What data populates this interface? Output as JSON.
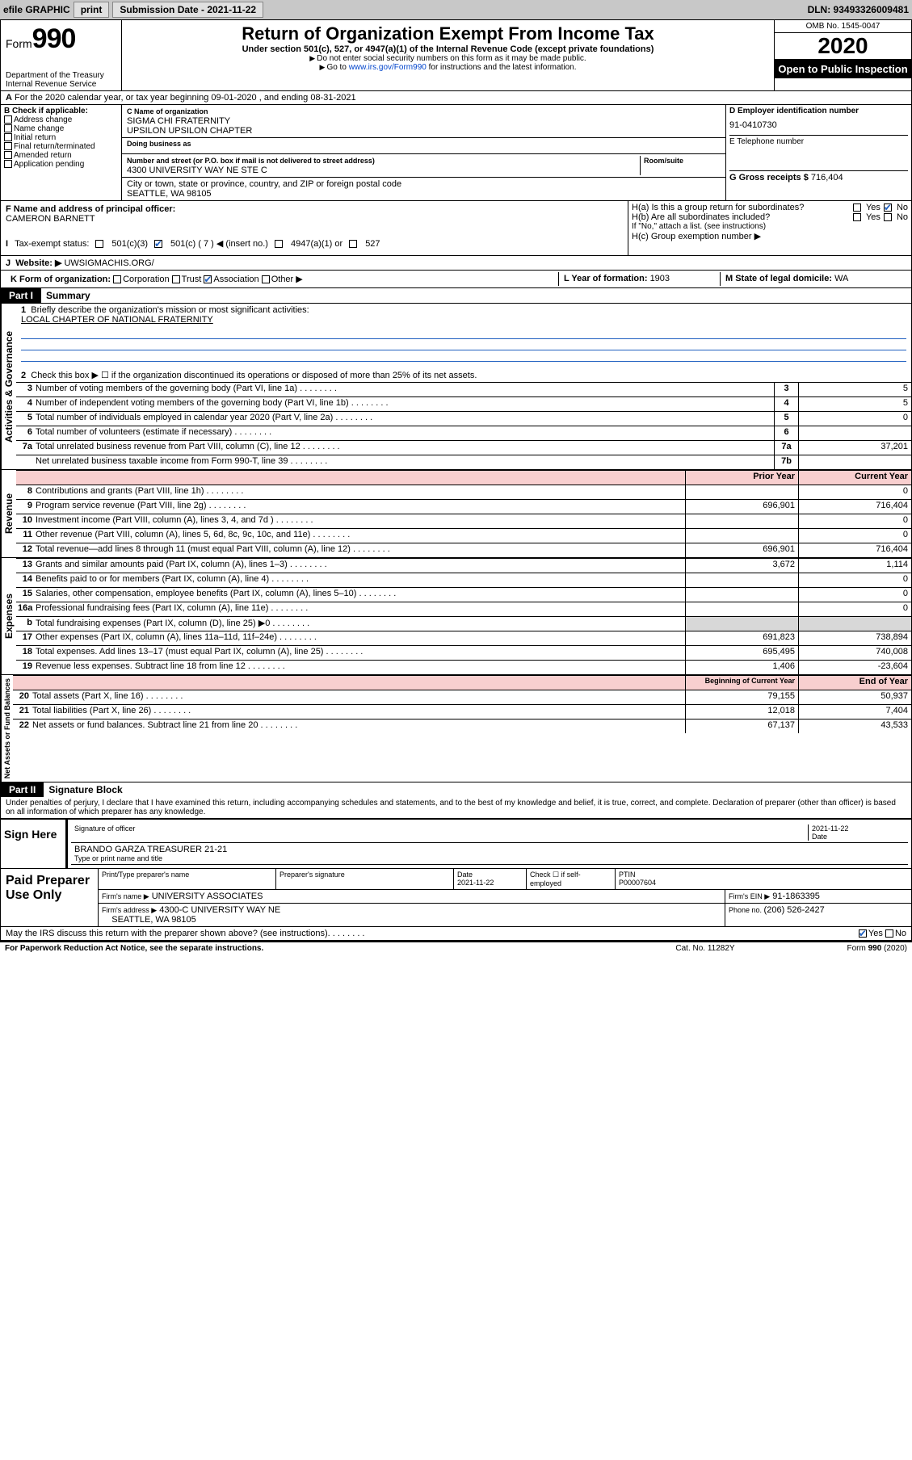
{
  "topbar": {
    "efile": "efile GRAPHIC",
    "print": "print",
    "sub_label": "Submission Date - 2021-11-22",
    "dln": "DLN: 93493326009481"
  },
  "header": {
    "form_label": "Form",
    "form_num": "990",
    "title": "Return of Organization Exempt From Income Tax",
    "subtitle": "Under section 501(c), 527, or 4947(a)(1) of the Internal Revenue Code (except private foundations)",
    "inst1": "Do not enter social security numbers on this form as it may be made public.",
    "inst2_pre": "Go to ",
    "inst2_link": "www.irs.gov/Form990",
    "inst2_post": " for instructions and the latest information.",
    "dept": "Department of the Treasury",
    "irs": "Internal Revenue Service",
    "omb": "OMB No. 1545-0047",
    "year": "2020",
    "open_public": "Open to Public Inspection"
  },
  "line_a": "For the 2020 calendar year, or tax year beginning 09-01-2020    , and ending 08-31-2021",
  "box_b": {
    "label": "B Check if applicable:",
    "items": [
      "Address change",
      "Name change",
      "Initial return",
      "Final return/terminated",
      "Amended return",
      "Application pending"
    ]
  },
  "box_c": {
    "name_label": "C Name of organization",
    "name1": "SIGMA CHI FRATERNITY",
    "name2": "UPSILON UPSILON CHAPTER",
    "dba_label": "Doing business as",
    "street_label": "Number and street (or P.O. box if mail is not delivered to street address)",
    "room_label": "Room/suite",
    "street": "4300 UNIVERSITY WAY NE STE C",
    "city_label": "City or town, state or province, country, and ZIP or foreign postal code",
    "city": "SEATTLE, WA  98105"
  },
  "box_d": {
    "ein_label": "D Employer identification number",
    "ein": "91-0410730",
    "phone_label": "E Telephone number",
    "gross_label": "G Gross receipts $ ",
    "gross": "716,404"
  },
  "box_f": {
    "label": "F  Name and address of principal officer:",
    "name": "CAMERON BARNETT"
  },
  "box_h": {
    "ha": "H(a)  Is this a group return for subordinates?",
    "hb": "H(b)  Are all subordinates included?",
    "hb_note": "If \"No,\" attach a list. (see instructions)",
    "hc": "H(c)  Group exemption number ▶",
    "yes": "Yes",
    "no": "No"
  },
  "tax_status": {
    "label": "Tax-exempt status:",
    "opt1": "501(c)(3)",
    "opt2_pre": "501(c) ( ",
    "opt2_val": "7",
    "opt2_post": " ) ◀ (insert no.)",
    "opt3": "4947(a)(1) or",
    "opt4": "527"
  },
  "section_j": {
    "label": "J",
    "web_label": "Website: ▶",
    "web": "UWSIGMACHIS.ORG/"
  },
  "section_k": {
    "k_label": "K Form of organization:",
    "opts": [
      "Corporation",
      "Trust",
      "Association",
      "Other ▶"
    ],
    "checked_idx": 2,
    "l_label": "L Year of formation: ",
    "l_val": "1903",
    "m_label": "M State of legal domicile: ",
    "m_val": "WA"
  },
  "part1": {
    "part": "Part I",
    "title": "Summary",
    "q1_label": "Briefly describe the organization's mission or most significant activities:",
    "q1_val": "LOCAL CHAPTER OF NATIONAL FRATERNITY",
    "q2": "Check this box ▶ ☐  if the organization discontinued its operations or disposed of more than 25% of its net assets.",
    "side_labels": [
      "Activities & Governance",
      "Revenue",
      "Expenses",
      "Net Assets or Fund Balances"
    ]
  },
  "gov_lines": [
    {
      "num": "3",
      "desc": "Number of voting members of the governing body (Part VI, line 1a)",
      "cell": "3",
      "val": "5"
    },
    {
      "num": "4",
      "desc": "Number of independent voting members of the governing body (Part VI, line 1b)",
      "cell": "4",
      "val": "5"
    },
    {
      "num": "5",
      "desc": "Total number of individuals employed in calendar year 2020 (Part V, line 2a)",
      "cell": "5",
      "val": "0"
    },
    {
      "num": "6",
      "desc": "Total number of volunteers (estimate if necessary)",
      "cell": "6",
      "val": ""
    },
    {
      "num": "7a",
      "desc": "Total unrelated business revenue from Part VIII, column (C), line 12",
      "cell": "7a",
      "val": "37,201"
    },
    {
      "num": "",
      "desc": "Net unrelated business taxable income from Form 990-T, line 39",
      "cell": "7b",
      "val": ""
    }
  ],
  "two_col_header": {
    "prior": "Prior Year",
    "curr": "Current Year"
  },
  "rev_lines": [
    {
      "num": "8",
      "desc": "Contributions and grants (Part VIII, line 1h)",
      "prior": "",
      "curr": "0"
    },
    {
      "num": "9",
      "desc": "Program service revenue (Part VIII, line 2g)",
      "prior": "696,901",
      "curr": "716,404"
    },
    {
      "num": "10",
      "desc": "Investment income (Part VIII, column (A), lines 3, 4, and 7d )",
      "prior": "",
      "curr": "0"
    },
    {
      "num": "11",
      "desc": "Other revenue (Part VIII, column (A), lines 5, 6d, 8c, 9c, 10c, and 11e)",
      "prior": "",
      "curr": "0"
    },
    {
      "num": "12",
      "desc": "Total revenue—add lines 8 through 11 (must equal Part VIII, column (A), line 12)",
      "prior": "696,901",
      "curr": "716,404"
    }
  ],
  "exp_lines": [
    {
      "num": "13",
      "desc": "Grants and similar amounts paid (Part IX, column (A), lines 1–3)",
      "prior": "3,672",
      "curr": "1,114"
    },
    {
      "num": "14",
      "desc": "Benefits paid to or for members (Part IX, column (A), line 4)",
      "prior": "",
      "curr": "0"
    },
    {
      "num": "15",
      "desc": "Salaries, other compensation, employee benefits (Part IX, column (A), lines 5–10)",
      "prior": "",
      "curr": "0"
    },
    {
      "num": "16a",
      "desc": "Professional fundraising fees (Part IX, column (A), line 11e)",
      "prior": "",
      "curr": "0"
    },
    {
      "num": "b",
      "desc": "Total fundraising expenses (Part IX, column (D), line 25) ▶0",
      "prior": "shade",
      "curr": "shade"
    },
    {
      "num": "17",
      "desc": "Other expenses (Part IX, column (A), lines 11a–11d, 11f–24e)",
      "prior": "691,823",
      "curr": "738,894"
    },
    {
      "num": "18",
      "desc": "Total expenses. Add lines 13–17 (must equal Part IX, column (A), line 25)",
      "prior": "695,495",
      "curr": "740,008"
    },
    {
      "num": "19",
      "desc": "Revenue less expenses. Subtract line 18 from line 12",
      "prior": "1,406",
      "curr": "-23,604"
    }
  ],
  "net_header": {
    "prior": "Beginning of Current Year",
    "curr": "End of Year"
  },
  "net_lines": [
    {
      "num": "20",
      "desc": "Total assets (Part X, line 16)",
      "prior": "79,155",
      "curr": "50,937"
    },
    {
      "num": "21",
      "desc": "Total liabilities (Part X, line 26)",
      "prior": "12,018",
      "curr": "7,404"
    },
    {
      "num": "22",
      "desc": "Net assets or fund balances. Subtract line 21 from line 20",
      "prior": "67,137",
      "curr": "43,533"
    }
  ],
  "part2": {
    "part": "Part II",
    "title": "Signature Block",
    "jurat": "Under penalties of perjury, I declare that I have examined this return, including accompanying schedules and statements, and to the best of my knowledge and belief, it is true, correct, and complete. Declaration of preparer (other than officer) is based on all information of which preparer has any knowledge."
  },
  "sign": {
    "here": "Sign Here",
    "sig_label": "Signature of officer",
    "date_label": "Date",
    "date": "2021-11-22",
    "name": "BRANDO GARZA  TREASURER 21-21",
    "name_label": "Type or print name and title"
  },
  "paid": {
    "label": "Paid Preparer Use Only",
    "h1": "Print/Type preparer's name",
    "h2": "Preparer's signature",
    "h3": "Date",
    "date": "2021-11-22",
    "h4": "Check ☐ if self-employed",
    "ptin_label": "PTIN",
    "ptin": "P00007604",
    "firm_label": "Firm's name     ▶",
    "firm": "UNIVERSITY ASSOCIATES",
    "ein_label": "Firm's EIN ▶",
    "ein": "91-1863395",
    "addr_label": "Firm's address ▶",
    "addr1": "4300-C UNIVERSITY WAY NE",
    "addr2": "SEATTLE, WA  98105",
    "phone_label": "Phone no. ",
    "phone": "(206) 526-2427"
  },
  "discuss": {
    "q": "May the IRS discuss this return with the preparer shown above? (see instructions)",
    "yes": "Yes",
    "no": "No"
  },
  "footer": {
    "left": "For Paperwork Reduction Act Notice, see the separate instructions.",
    "mid": "Cat. No. 11282Y",
    "right": "Form 990 (2020)"
  },
  "dots": "  .    .    .    .    .    .    .    ."
}
